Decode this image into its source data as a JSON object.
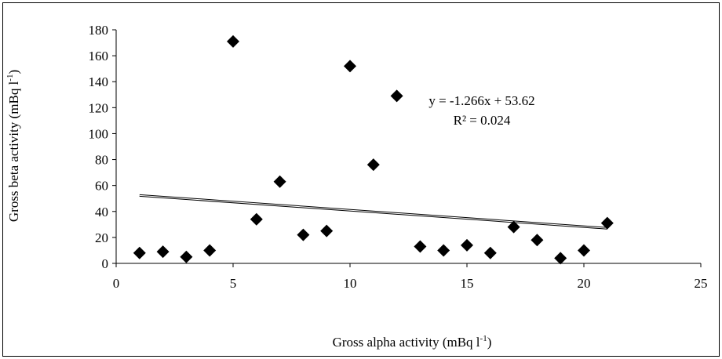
{
  "chart_data": {
    "type": "scatter",
    "title": "",
    "xlabel": "Gross alpha activity (mBq l",
    "xlabel_sup": "-1",
    "xlabel_end": ")",
    "ylabel": "Gross beta activity (mBq l",
    "ylabel_sup": "-1",
    "ylabel_end": ")",
    "xlim": [
      0,
      25
    ],
    "ylim": [
      0,
      180
    ],
    "xticks": [
      0,
      5,
      10,
      15,
      20,
      25
    ],
    "yticks": [
      0,
      20,
      40,
      60,
      80,
      100,
      120,
      140,
      160,
      180
    ],
    "grid": false,
    "legend": "none",
    "marker": "diamond",
    "marker_color": "#000000",
    "x": [
      1,
      2,
      3,
      4,
      5,
      6,
      7,
      8,
      9,
      10,
      11,
      12,
      13,
      14,
      15,
      16,
      17,
      18,
      19,
      20,
      21
    ],
    "y": [
      8,
      9,
      5,
      10,
      171,
      34,
      63,
      22,
      25,
      152,
      76,
      129,
      13,
      10,
      14,
      8,
      28,
      18,
      4,
      10,
      31
    ],
    "trendline": {
      "type": "linear",
      "slope": -1.266,
      "intercept": 53.62,
      "x_range": [
        1,
        21
      ],
      "equation": "y = -1.266x + 53.62",
      "r_squared": "R² = 0.024"
    }
  }
}
